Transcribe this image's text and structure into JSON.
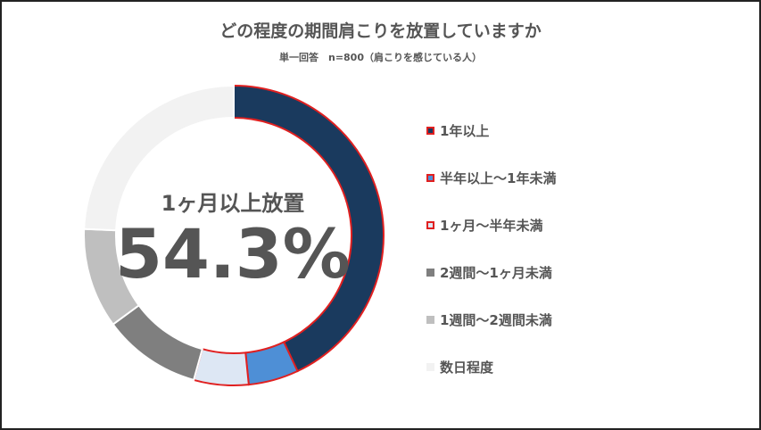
{
  "chart_data": {
    "type": "pie",
    "style": "donut",
    "title": "どの程度の期間肩こりを放置していますか",
    "subtitle": "単一回答　n=800（肩こりを感じている人）",
    "center_label": "1ヶ月以上放置",
    "center_value": "54.3%",
    "legend_position": "right",
    "slices": [
      {
        "label": "1年以上",
        "value": 43.0,
        "color": "#1a3a5e",
        "highlight": true
      },
      {
        "label": "半年以上～1年未満",
        "value": 5.4,
        "color": "#4e8fd6",
        "highlight": true
      },
      {
        "label": "1ヶ月～半年未満",
        "value": 5.9,
        "color": "#dde7f4",
        "highlight": true
      },
      {
        "label": "2週間～1ヶ月未満",
        "value": 10.6,
        "color": "#7f7f7f",
        "highlight": false
      },
      {
        "label": "1週間～2週間未満",
        "value": 10.8,
        "color": "#bfbfbf",
        "highlight": false
      },
      {
        "label": "数日程度",
        "value": 24.3,
        "color": "#f2f2f2",
        "highlight": false
      }
    ],
    "highlight_color": "#e02020"
  }
}
